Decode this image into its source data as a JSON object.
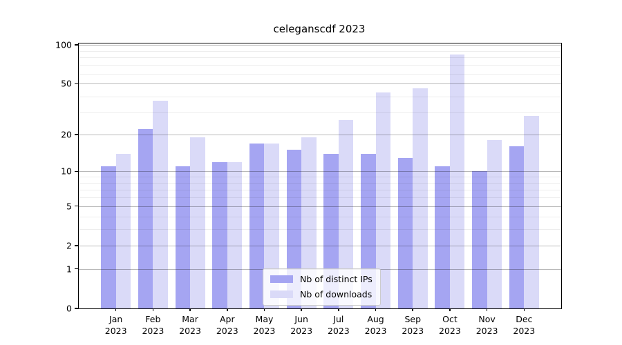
{
  "title": "celeganscdf 2023",
  "chart_data": {
    "type": "bar",
    "title": "celeganscdf 2023",
    "categories": [
      "Jan\n2023",
      "Feb\n2023",
      "Mar\n2023",
      "Apr\n2023",
      "May\n2023",
      "Jun\n2023",
      "Jul\n2023",
      "Aug\n2023",
      "Sep\n2023",
      "Oct\n2023",
      "Nov\n2023",
      "Dec\n2023"
    ],
    "series": [
      {
        "name": "Nb of distinct IPs",
        "color": "#a5a5f2",
        "values": [
          11,
          22,
          11,
          12,
          17,
          15,
          14,
          14,
          13,
          11,
          10,
          16
        ]
      },
      {
        "name": "Nb of downloads",
        "color": "#dadaf8",
        "values": [
          14,
          37,
          19,
          12,
          17,
          19,
          26,
          43,
          46,
          84,
          18,
          28
        ]
      }
    ],
    "xlabel": "",
    "ylabel": "",
    "yscale": "log1p",
    "yticks": [
      0,
      1,
      2,
      5,
      10,
      20,
      50,
      100
    ],
    "minor_yticks": [
      3,
      4,
      6,
      7,
      8,
      9,
      30,
      40,
      60,
      70,
      80,
      90
    ],
    "ylim": [
      0,
      103
    ],
    "grid": true,
    "legend_position": "lower center"
  }
}
